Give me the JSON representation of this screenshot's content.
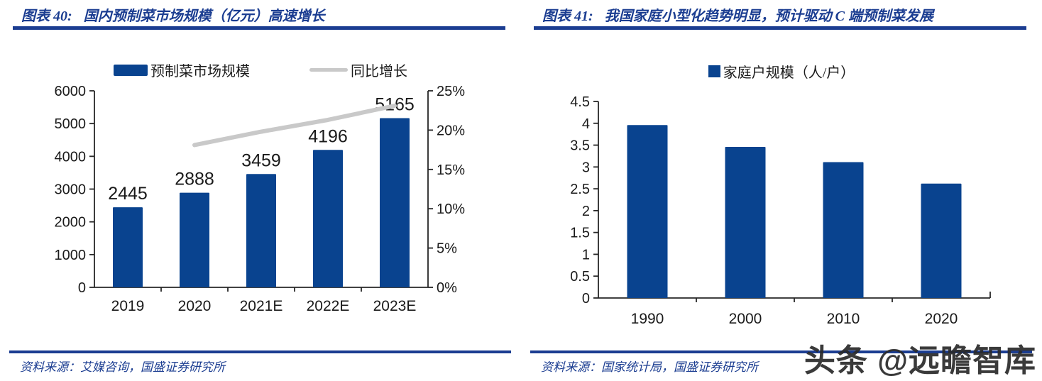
{
  "panels": [
    {
      "figure_label": "图表 40:",
      "title": "国内预制菜市场规模（亿元）高速增长",
      "source": "资料来源：艾媒咨询，国盛证券研究所"
    },
    {
      "figure_label": "图表 41:",
      "title": "我国家庭小型化趋势明显，预计驱动 C 端预制菜发展",
      "source": "资料来源：国家统计局，国盛证券研究所"
    }
  ],
  "watermark": "头条 @远瞻智库",
  "colors": {
    "navy": "#1b3d91",
    "bar_blue": "#09438f",
    "line_gray": "#c9c9c9",
    "axis_black": "#262626",
    "label_black": "#1a1a1a"
  },
  "chart_data": [
    {
      "type": "bar",
      "title": "国内预制菜市场规模（亿元）高速增长",
      "categories": [
        "2019",
        "2020",
        "2021E",
        "2022E",
        "2023E"
      ],
      "series": [
        {
          "name": "预制菜市场规模",
          "type": "bar",
          "axis": "left",
          "color": "#09438f",
          "values": [
            2445,
            2888,
            3459,
            4196,
            5165
          ],
          "data_labels": [
            "2445",
            "2888",
            "3459",
            "4196",
            "5165"
          ]
        },
        {
          "name": "同比增长",
          "type": "line",
          "axis": "right",
          "color": "#c9c9c9",
          "unit": "%",
          "values": [
            null,
            18.1,
            19.8,
            21.3,
            23.1
          ]
        }
      ],
      "left_axis": {
        "min": 0,
        "max": 6000,
        "step": 1000,
        "ticks": [
          "0",
          "1000",
          "2000",
          "3000",
          "4000",
          "5000",
          "6000"
        ]
      },
      "right_axis": {
        "min": 0,
        "max": 25,
        "step": 5,
        "ticks": [
          "0%",
          "5%",
          "10%",
          "15%",
          "20%",
          "25%"
        ]
      },
      "grid": false,
      "legend_position": "top"
    },
    {
      "type": "bar",
      "title": "家庭户规模（人/户）",
      "categories": [
        "1990",
        "2000",
        "2010",
        "2020"
      ],
      "series": [
        {
          "name": "家庭户规模（人/户）",
          "type": "bar",
          "axis": "left",
          "color": "#09438f",
          "values": [
            3.96,
            3.46,
            3.11,
            2.62
          ]
        }
      ],
      "left_axis": {
        "min": 0,
        "max": 4.5,
        "step": 0.5,
        "ticks": [
          "0",
          "0.5",
          "1",
          "1.5",
          "2",
          "2.5",
          "3",
          "3.5",
          "4",
          "4.5"
        ]
      },
      "grid": false,
      "legend_position": "top"
    }
  ]
}
